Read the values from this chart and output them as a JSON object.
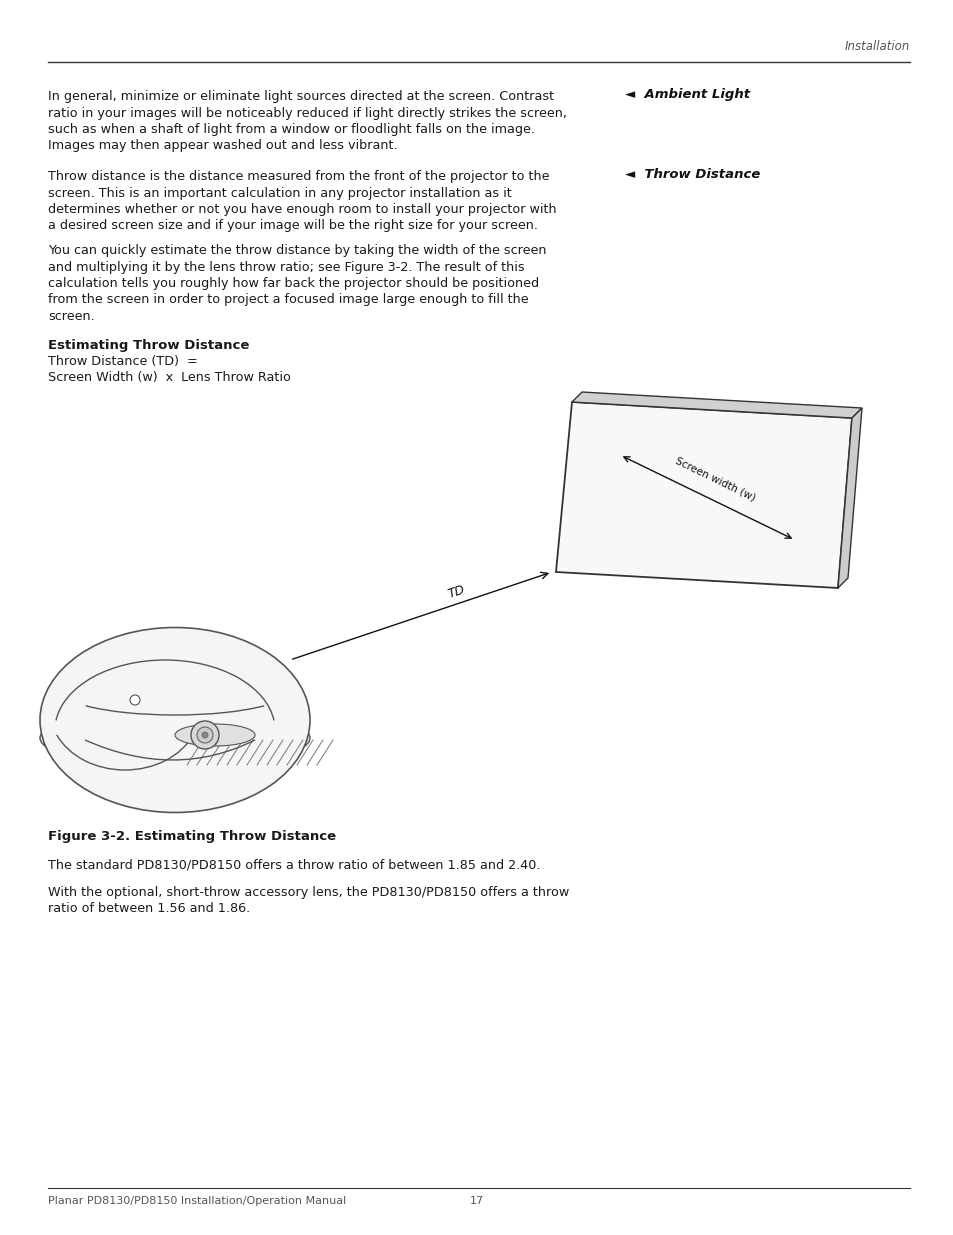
{
  "bg_color": "#ffffff",
  "header_italic": "Installation",
  "ambient_light_header": "◄  Ambient Light",
  "ambient_light_text": [
    "In general, minimize or eliminate light sources directed at the screen. Contrast",
    "ratio in your images will be noticeably reduced if light directly strikes the screen,",
    "such as when a shaft of light from a window or floodlight falls on the image.",
    "Images may then appear washed out and less vibrant."
  ],
  "throw_distance_header": "◄  Throw Distance",
  "throw_distance_text1": [
    "Throw distance is the distance measured from the front of the projector to the",
    "screen. This is an important calculation in any projector installation as it",
    "determines whether or not you have enough room to install your projector with",
    "a desired screen size and if your image will be the right size for your screen."
  ],
  "throw_distance_text2": [
    "You can quickly estimate the throw distance by taking the width of the screen",
    "and multiplying it by the lens throw ratio; see Figure 3-2. The result of this",
    "calculation tells you roughly how far back the projector should be positioned",
    "from the screen in order to project a focused image large enough to fill the",
    "screen."
  ],
  "est_title": "Estimating Throw Distance",
  "est_formula_line1": "Throw Distance (TD)  =",
  "est_formula_line2": "Screen Width (w)  x  Lens Throw Ratio",
  "figure_caption": "Figure 3-2. Estimating Throw Distance",
  "para3": "The standard PD8130/PD8150 offers a throw ratio of between 1.85 and 2.40.",
  "para4_line1": "With the optional, short-throw accessory lens, the PD8130/PD8150 offers a throw",
  "para4_line2": "ratio of between 1.56 and 1.86.",
  "footer_left": "Planar PD8130/PD8150 Installation/Operation Manual",
  "footer_page": "17",
  "text_color": "#1a1a1a",
  "line_color": "#555555",
  "sidebar_header_color": "#111111",
  "screen_color": "#333333",
  "proj_color": "#555555"
}
